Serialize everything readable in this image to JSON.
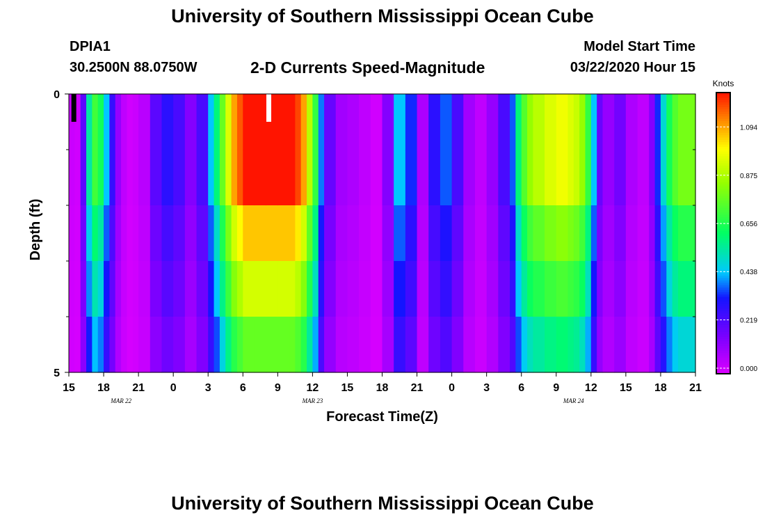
{
  "header": {
    "title": "University of Southern Mississippi Ocean Cube",
    "station_name": "DPIA1",
    "station_coords": "30.2500N 88.0750W",
    "chart_title": "2-D Currents Speed-Magnitude",
    "model_start_label": "Model Start Time",
    "model_start_value": "03/22/2020 Hour 15"
  },
  "footer": {
    "title": "University of Southern Mississippi Ocean Cube"
  },
  "chart_data": {
    "type": "heatmap",
    "title": "2-D Currents Speed-Magnitude",
    "xlabel": "Forecast Time(Z)",
    "ylabel": "Depth (ft)",
    "x_start_hour": 0,
    "x_end_hour": 54,
    "x_ticks": [
      {
        "hour": 0,
        "label": "15"
      },
      {
        "hour": 3,
        "label": "18"
      },
      {
        "hour": 6,
        "label": "21"
      },
      {
        "hour": 9,
        "label": "0"
      },
      {
        "hour": 12,
        "label": "3"
      },
      {
        "hour": 15,
        "label": "6"
      },
      {
        "hour": 18,
        "label": "9"
      },
      {
        "hour": 21,
        "label": "12"
      },
      {
        "hour": 24,
        "label": "15"
      },
      {
        "hour": 27,
        "label": "18"
      },
      {
        "hour": 30,
        "label": "21"
      },
      {
        "hour": 33,
        "label": "0"
      },
      {
        "hour": 36,
        "label": "3"
      },
      {
        "hour": 39,
        "label": "6"
      },
      {
        "hour": 42,
        "label": "9"
      },
      {
        "hour": 45,
        "label": "12"
      },
      {
        "hour": 48,
        "label": "15"
      },
      {
        "hour": 51,
        "label": "18"
      },
      {
        "hour": 54,
        "label": "21"
      }
    ],
    "date_labels": [
      {
        "hour": 4.5,
        "label": "MAR 22"
      },
      {
        "hour": 21,
        "label": "MAR 23"
      },
      {
        "hour": 43.5,
        "label": "MAR 24"
      }
    ],
    "y_range": [
      0,
      5
    ],
    "y_tick_labels": [
      {
        "depth": 0,
        "label": "0"
      },
      {
        "depth": 5,
        "label": "5"
      }
    ],
    "y_minor_ticks": [
      1,
      2,
      3,
      4
    ],
    "depths": [
      0,
      1,
      2,
      3,
      4,
      5
    ],
    "colorbar": {
      "unit": "Knots",
      "min": 0,
      "max": 1.25,
      "ticks": [
        0.0,
        0.219,
        0.438,
        0.656,
        0.875,
        1.094
      ],
      "tick_labels": [
        "0.000",
        "0.219",
        "0.438",
        "0.656",
        "0.875",
        "1.094"
      ]
    },
    "time_profile": {
      "hours": [
        0,
        0.5,
        1,
        1.5,
        2,
        2.5,
        3,
        3.5,
        4,
        4.5,
        5,
        5.5,
        6,
        7,
        8,
        9,
        10,
        11,
        12,
        12.5,
        13,
        13.5,
        14,
        14.5,
        15,
        16,
        17,
        18,
        19,
        19.5,
        20,
        20.5,
        21,
        21.5,
        22,
        23,
        24,
        25,
        26,
        27,
        28,
        29,
        30,
        31,
        32,
        33,
        34,
        35,
        36,
        37,
        38,
        38.5,
        39,
        39.5,
        40,
        41,
        42,
        43,
        43.5,
        44,
        44.5,
        45,
        45.5,
        46,
        47,
        48,
        49,
        50,
        50.5,
        51,
        51.5,
        52,
        52.5,
        53,
        54
      ],
      "speed_at_surface": [
        0.03,
        0.02,
        0.22,
        0.55,
        0.72,
        0.65,
        0.45,
        0.28,
        0.12,
        0.05,
        0.02,
        0.03,
        0.06,
        0.22,
        0.3,
        0.25,
        0.15,
        0.25,
        0.45,
        0.6,
        0.78,
        0.95,
        1.1,
        1.18,
        1.25,
        1.25,
        1.25,
        1.25,
        1.25,
        1.2,
        1.1,
        0.9,
        0.7,
        0.4,
        0.2,
        0.1,
        0.08,
        0.05,
        0.02,
        0.15,
        0.45,
        0.35,
        0.08,
        0.3,
        0.38,
        0.25,
        0.1,
        0.05,
        0.12,
        0.25,
        0.38,
        0.6,
        0.75,
        0.85,
        0.9,
        0.95,
        0.98,
        0.95,
        0.92,
        0.85,
        0.7,
        0.45,
        0.2,
        0.12,
        0.18,
        0.08,
        0.05,
        0.15,
        0.35,
        0.5,
        0.65,
        0.75,
        0.8,
        0.8,
        0.85
      ]
    },
    "depth_factors": [
      1.0,
      1.0,
      0.85,
      0.75,
      0.62,
      0.52
    ],
    "annotations": [
      {
        "type": "missing",
        "hour": 0.4,
        "depth_from": 0,
        "depth_to": 0.5,
        "color": "#000000"
      },
      {
        "type": "missing",
        "hour": 17.2,
        "depth_from": 0,
        "depth_to": 0.5,
        "color": "#ffffff"
      }
    ]
  }
}
